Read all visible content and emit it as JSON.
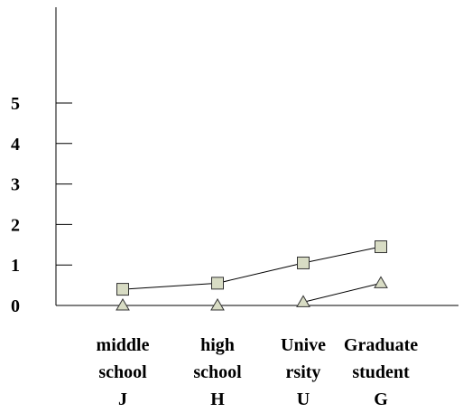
{
  "chart_data": {
    "type": "line",
    "categories": [
      [
        "middle",
        "school",
        "J"
      ],
      [
        "high",
        "school",
        "H"
      ],
      [
        "Unive",
        "rsity",
        "U"
      ],
      [
        "Graduate",
        "student",
        "G"
      ]
    ],
    "yticks": [
      "0",
      "1",
      "2",
      "3",
      "4",
      "5"
    ],
    "ylim": [
      0,
      6.5
    ],
    "grid": false,
    "legend": "none",
    "series": [
      {
        "marker": "square",
        "values": [
          0.4,
          0.55,
          1.05,
          1.45
        ],
        "color": "#d8dcc4"
      },
      {
        "marker": "triangle",
        "values": [
          0.0,
          0.0,
          0.08,
          0.55
        ],
        "color": "#d8dcc4"
      }
    ]
  }
}
